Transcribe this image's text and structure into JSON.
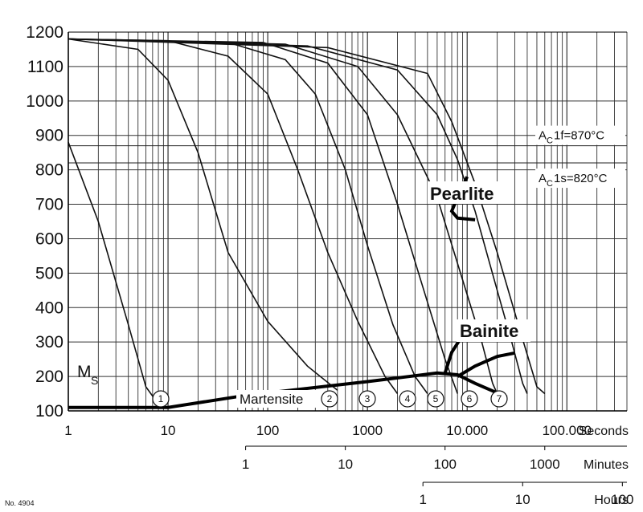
{
  "figure_number": "No. 4904",
  "chart_data": {
    "type": "line",
    "title": "",
    "ylim": [
      100,
      1200
    ],
    "yticks": [
      "1200",
      "1100",
      "1000",
      "900",
      "800",
      "700",
      "600",
      "500",
      "400",
      "300",
      "200",
      "100"
    ],
    "x_axes": [
      {
        "unit": "Seconds",
        "ticks": [
          "1",
          "10",
          "100",
          "1000",
          "10.000",
          "100.000"
        ]
      },
      {
        "unit": "Minutes",
        "ticks": [
          "1",
          "10",
          "100",
          "1000"
        ]
      },
      {
        "unit": "Hours",
        "ticks": [
          "1",
          "10",
          "100"
        ]
      }
    ],
    "x_scale": "log",
    "xlim_seconds": [
      1,
      400000
    ],
    "grid": true,
    "labels": {
      "ms": "M",
      "ms_sub": "S",
      "martensite": "Martensite",
      "pearlite": "Pearlite",
      "bainite": "Bainite",
      "ac1f": {
        "pre": "A",
        "sub": "C",
        "post": "1f=870°C",
        "value": 870
      },
      "ac1s": {
        "pre": "A",
        "sub": "C",
        "post": "1s=820°C",
        "value": 820
      }
    },
    "cooling_curve_numbers": [
      "1",
      "2",
      "3",
      "4",
      "5",
      "6",
      "7"
    ],
    "cooling_curves": [
      {
        "points": [
          [
            1,
            880
          ],
          [
            2,
            650
          ],
          [
            4,
            350
          ],
          [
            6,
            170
          ],
          [
            8,
            120
          ]
        ]
      },
      {
        "points": [
          [
            1,
            1180
          ],
          [
            5,
            1150
          ],
          [
            10,
            1060
          ],
          [
            20,
            850
          ],
          [
            40,
            560
          ],
          [
            100,
            360
          ],
          [
            250,
            230
          ],
          [
            500,
            160
          ]
        ]
      },
      {
        "points": [
          [
            1,
            1180
          ],
          [
            10,
            1175
          ],
          [
            40,
            1130
          ],
          [
            100,
            1020
          ],
          [
            200,
            800
          ],
          [
            400,
            560
          ],
          [
            800,
            360
          ],
          [
            1500,
            200
          ],
          [
            2000,
            150
          ]
        ]
      },
      {
        "points": [
          [
            1,
            1180
          ],
          [
            40,
            1170
          ],
          [
            150,
            1120
          ],
          [
            300,
            1020
          ],
          [
            600,
            800
          ],
          [
            1000,
            580
          ],
          [
            1800,
            350
          ],
          [
            3000,
            200
          ],
          [
            4000,
            150
          ]
        ]
      },
      {
        "points": [
          [
            1,
            1180
          ],
          [
            90,
            1170
          ],
          [
            400,
            1110
          ],
          [
            1000,
            960
          ],
          [
            2000,
            700
          ],
          [
            3500,
            470
          ],
          [
            6000,
            250
          ],
          [
            8000,
            150
          ]
        ]
      },
      {
        "points": [
          [
            1,
            1180
          ],
          [
            150,
            1165
          ],
          [
            800,
            1100
          ],
          [
            2000,
            960
          ],
          [
            5000,
            720
          ],
          [
            9000,
            480
          ],
          [
            14000,
            300
          ],
          [
            18000,
            180
          ],
          [
            20000,
            150
          ]
        ]
      },
      {
        "points": [
          [
            1,
            1180
          ],
          [
            250,
            1160
          ],
          [
            2000,
            1090
          ],
          [
            5000,
            960
          ],
          [
            8000,
            830
          ],
          [
            12000,
            680
          ],
          [
            20000,
            450
          ],
          [
            28000,
            300
          ],
          [
            36000,
            180
          ],
          [
            40000,
            150
          ]
        ]
      },
      {
        "points": [
          [
            1,
            1180
          ],
          [
            400,
            1155
          ],
          [
            4000,
            1080
          ],
          [
            7000,
            940
          ],
          [
            12000,
            760
          ],
          [
            20000,
            560
          ],
          [
            35000,
            320
          ],
          [
            50000,
            170
          ],
          [
            60000,
            150
          ]
        ]
      }
    ],
    "phase_boundaries": {
      "ms_line": [
        [
          1,
          110
        ],
        [
          10,
          110
        ],
        [
          60,
          145
        ],
        [
          1000,
          185
        ],
        [
          5000,
          210
        ],
        [
          8000,
          205
        ],
        [
          12000,
          180
        ],
        [
          25000,
          140
        ]
      ],
      "pearlite": [
        [
          10000,
          780
        ],
        [
          8000,
          720
        ],
        [
          7000,
          680
        ],
        [
          8000,
          660
        ],
        [
          12000,
          655
        ]
      ],
      "bainite_upper": [
        [
          6000,
          210
        ],
        [
          7000,
          270
        ],
        [
          10000,
          340
        ],
        [
          20000,
          360
        ]
      ],
      "bainite_lower": [
        [
          8000,
          200
        ],
        [
          12000,
          230
        ],
        [
          20000,
          258
        ],
        [
          30000,
          268
        ]
      ]
    }
  }
}
